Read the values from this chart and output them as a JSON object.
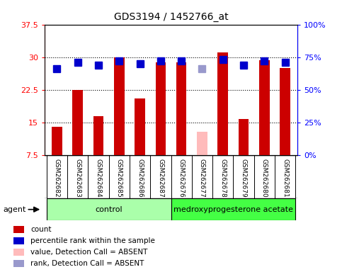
{
  "title": "GDS3194 / 1452766_at",
  "samples": [
    "GSM262682",
    "GSM262683",
    "GSM262684",
    "GSM262685",
    "GSM262686",
    "GSM262687",
    "GSM262676",
    "GSM262677",
    "GSM262678",
    "GSM262679",
    "GSM262680",
    "GSM262681"
  ],
  "bar_values": [
    14.0,
    22.5,
    16.5,
    30.0,
    20.5,
    28.8,
    28.8,
    null,
    31.0,
    15.8,
    29.3,
    27.5
  ],
  "absent_bar_values": [
    null,
    null,
    null,
    null,
    null,
    null,
    null,
    12.8,
    null,
    null,
    null,
    null
  ],
  "rank_values": [
    66,
    71,
    69,
    72,
    70,
    72,
    72,
    null,
    73,
    69,
    72,
    71
  ],
  "absent_rank_values": [
    null,
    null,
    null,
    null,
    null,
    null,
    null,
    66,
    null,
    null,
    null,
    null
  ],
  "ylim_left": [
    7.5,
    37.5
  ],
  "ylim_right": [
    0,
    100
  ],
  "yticks_left": [
    7.5,
    15.0,
    22.5,
    30.0,
    37.5
  ],
  "yticks_right": [
    0,
    25,
    50,
    75,
    100
  ],
  "ytick_labels_left": [
    "7.5",
    "15",
    "22.5",
    "30",
    "37.5"
  ],
  "ytick_labels_right": [
    "0%",
    "25%",
    "50%",
    "75%",
    "100%"
  ],
  "grid_yticks": [
    15.0,
    22.5,
    30.0
  ],
  "groups": [
    {
      "label": "control",
      "indices": [
        0,
        1,
        2,
        3,
        4,
        5
      ],
      "color": "#aaffaa"
    },
    {
      "label": "medroxyprogesterone acetate",
      "indices": [
        6,
        7,
        8,
        9,
        10,
        11
      ],
      "color": "#44ff44"
    }
  ],
  "bar_color": "#cc0000",
  "absent_bar_color": "#ffbbbb",
  "rank_color": "#0000cc",
  "absent_rank_color": "#9999cc",
  "legend_items": [
    {
      "label": "count",
      "color": "#cc0000"
    },
    {
      "label": "percentile rank within the sample",
      "color": "#0000cc"
    },
    {
      "label": "value, Detection Call = ABSENT",
      "color": "#ffbbbb"
    },
    {
      "label": "rank, Detection Call = ABSENT",
      "color": "#9999cc"
    }
  ],
  "bar_width": 0.5,
  "rank_marker_size": 7,
  "plot_bg_color": "#ffffff",
  "label_bg_color": "#cccccc"
}
